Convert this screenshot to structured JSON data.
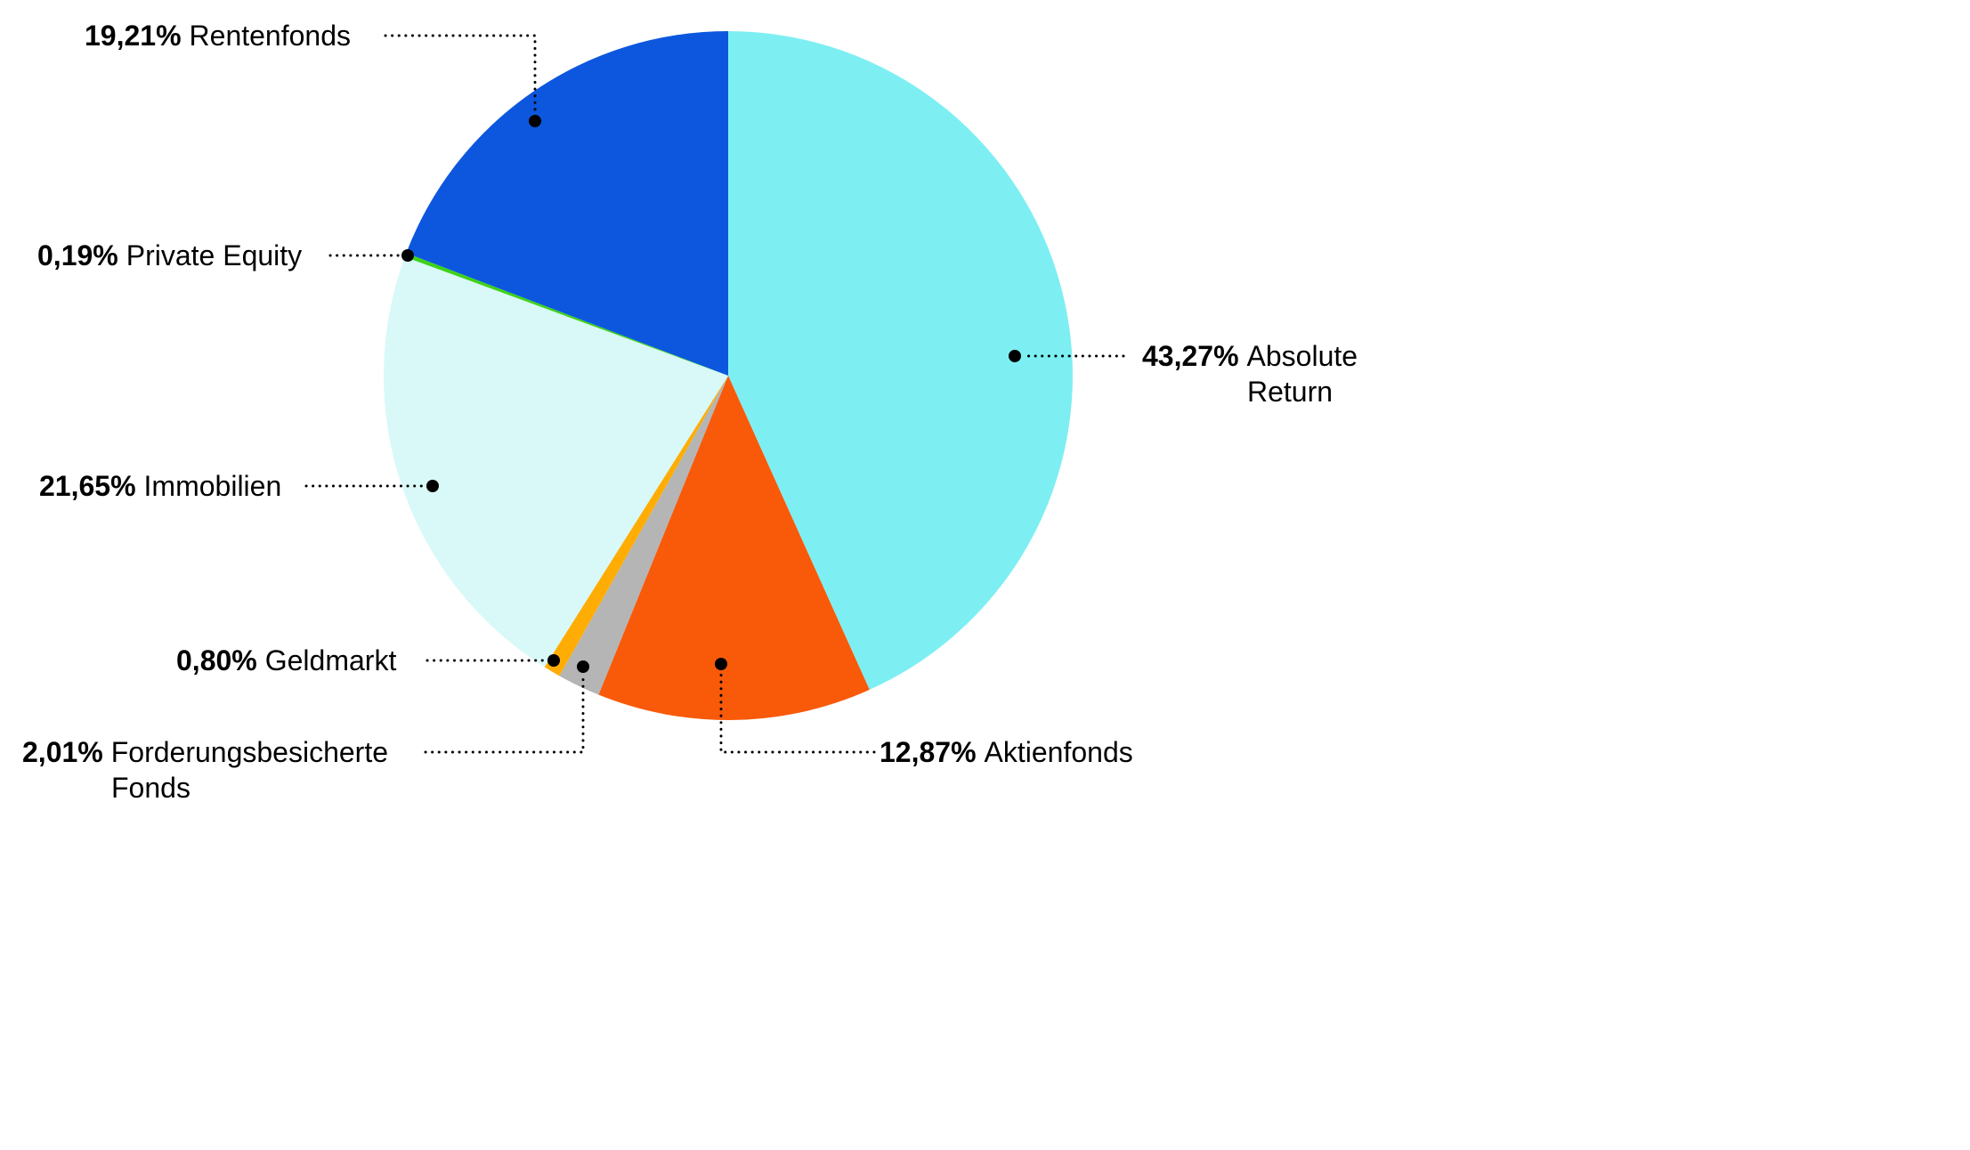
{
  "chart_data": {
    "type": "pie",
    "title": "",
    "legend_position": "callout-labels",
    "value_format": "german-decimal-percent",
    "total": 100,
    "start_angle_deg_from_top": 0,
    "direction": "clockwise",
    "slices": [
      {
        "label": "Absolute Return",
        "label_display": "Absolute\nReturn",
        "pct_label": "43,27%",
        "value": 43.27,
        "color": "#7DEFF2"
      },
      {
        "label": "Aktienfonds",
        "label_display": "Aktienfonds",
        "pct_label": "12,87%",
        "value": 12.87,
        "color": "#F85A0A"
      },
      {
        "label": "Forderungsbesicherte Fonds",
        "label_display": "Forderungsbesicherte\nFonds",
        "pct_label": "2,01%",
        "value": 2.01,
        "color": "#B5B5B5"
      },
      {
        "label": "Geldmarkt",
        "label_display": "Geldmarkt",
        "pct_label": "0,80%",
        "value": 0.8,
        "color": "#FFAD05"
      },
      {
        "label": "Immobilien",
        "label_display": "Immobilien",
        "pct_label": "21,65%",
        "value": 21.65,
        "color": "#D8F9F7"
      },
      {
        "label": "Private Equity",
        "label_display": "Private Equity",
        "pct_label": "0,19%",
        "value": 0.19,
        "color": "#3ED219"
      },
      {
        "label": "Rentenfonds",
        "label_display": "Rentenfonds",
        "pct_label": "19,21%",
        "value": 19.21,
        "color": "#0C57DE"
      }
    ]
  }
}
